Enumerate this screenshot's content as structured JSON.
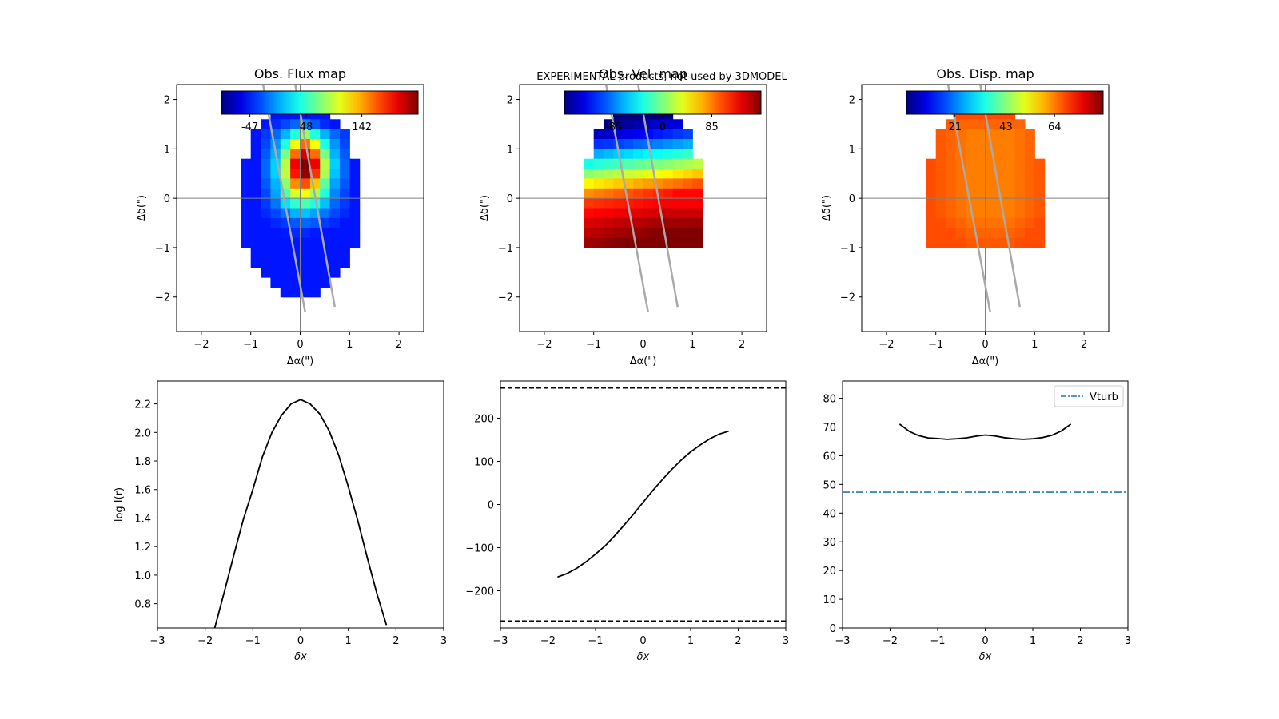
{
  "banner": "EXPERIMENTAL products, not used by 3DMODEL",
  "colors": {
    "banner": "#ff0000",
    "curve": "#000000",
    "vturb": "#1f77b4",
    "slit": "#a9a9a9",
    "axis_line": "#808080"
  },
  "chart_data": [
    {
      "type": "heatmap",
      "title": "Obs. Flux map",
      "xlabel": "Δα(\")",
      "ylabel": "Δδ(\")",
      "xlim": [
        -2.5,
        2.5
      ],
      "ylim": [
        -2.7,
        2.3
      ],
      "xticks": [
        -2,
        -1,
        0,
        1,
        2
      ],
      "yticks": [
        -2,
        -1,
        0,
        1,
        2
      ],
      "colorbar": {
        "colormap": "jet",
        "range": [
          -95,
          237
        ],
        "ticks": [
          -47,
          48,
          142
        ],
        "tick_labels": [
          "-47",
          "48",
          "142"
        ],
        "location": "top-inside"
      },
      "pixel_size": 0.2,
      "x0": -1.2,
      "y0": 1.8,
      "values": [
        [
          -47,
          -47,
          -47,
          -47,
          -47,
          -47,
          -47,
          -47,
          -47,
          -47,
          -47,
          -47,
          -47
        ],
        [
          -47,
          -47,
          -47,
          -40,
          -30,
          -20,
          -10,
          -25,
          -40,
          -47,
          -47,
          -47,
          -47
        ],
        [
          -47,
          -47,
          -35,
          -20,
          5,
          40,
          80,
          40,
          5,
          -20,
          -35,
          -47,
          -47
        ],
        [
          -47,
          -47,
          -30,
          -5,
          40,
          110,
          160,
          110,
          40,
          -5,
          -30,
          -47,
          -47
        ],
        [
          -47,
          -47,
          -25,
          5,
          70,
          160,
          210,
          160,
          70,
          5,
          -25,
          -47,
          -47
        ],
        [
          -47,
          -47,
          -20,
          15,
          90,
          200,
          237,
          200,
          90,
          15,
          -20,
          -47,
          -47
        ],
        [
          -47,
          -47,
          -20,
          15,
          90,
          190,
          230,
          180,
          85,
          10,
          -20,
          -47,
          -47
        ],
        [
          -47,
          -47,
          -25,
          5,
          75,
          150,
          170,
          130,
          60,
          0,
          -25,
          -47,
          -47
        ],
        [
          -47,
          -47,
          -30,
          0,
          55,
          100,
          110,
          85,
          40,
          -10,
          -30,
          -47,
          -47
        ],
        [
          -47,
          -47,
          -35,
          -15,
          20,
          45,
          55,
          40,
          10,
          -20,
          -35,
          -47,
          -47
        ],
        [
          -47,
          -47,
          -40,
          -30,
          -15,
          5,
          10,
          0,
          -15,
          -30,
          -40,
          -47,
          -47
        ],
        [
          -47,
          -47,
          -47,
          -40,
          -35,
          -25,
          -20,
          -25,
          -35,
          -40,
          -47,
          -47,
          -47
        ],
        [
          -47,
          -47,
          -47,
          -47,
          -45,
          -40,
          -40,
          -45,
          -47,
          -47,
          -47,
          -47,
          -47
        ],
        [
          -47,
          -47,
          -47,
          -47,
          -47,
          -47,
          -47,
          -47,
          -47,
          -47,
          -47,
          -47,
          -47
        ],
        [
          -47,
          -47,
          -47,
          -47,
          -47,
          -47,
          -47,
          -47,
          -47,
          -47,
          -47,
          -47,
          -47
        ],
        [
          -47,
          -47,
          -47,
          -47,
          -47,
          -47,
          -47,
          -47,
          -47,
          -47,
          -47,
          -47,
          -47
        ],
        [
          -47,
          -47,
          -47,
          -47,
          -47,
          -47,
          -47,
          -47,
          -47,
          -47,
          -47,
          -47,
          -47
        ],
        [
          -47,
          -47,
          -47,
          -47,
          -47,
          -47,
          -47,
          -47,
          -47,
          -47,
          -47,
          -47,
          -47
        ],
        [
          -47,
          -47,
          -47,
          -47,
          -47,
          -47,
          -47,
          -47,
          -47,
          -47,
          -47,
          -47,
          -47
        ],
        [
          -47,
          -47,
          -47,
          -47,
          -47,
          -47,
          -47,
          -47,
          -47,
          -47,
          -47,
          -47,
          -47
        ]
      ],
      "slit_lines": [
        {
          "x": [
            -0.75,
            0.1
          ],
          "y": [
            2.3,
            -2.3
          ]
        },
        {
          "x": [
            -0.1,
            0.7
          ],
          "y": [
            2.3,
            -2.2
          ]
        }
      ],
      "crosshair": {
        "x": 0,
        "y": 0
      }
    },
    {
      "type": "heatmap",
      "title": "Obs. Vel. map",
      "xlabel": "Δα(\")",
      "ylabel": "Δδ(\")",
      "xlim": [
        -2.5,
        2.5
      ],
      "ylim": [
        -2.7,
        2.3
      ],
      "xticks": [
        -2,
        -1,
        0,
        1,
        2
      ],
      "yticks": [
        -2,
        -1,
        0,
        1,
        2
      ],
      "colorbar": {
        "colormap": "jet",
        "range": [
          -170,
          170
        ],
        "ticks": [
          -85,
          0,
          85
        ],
        "tick_labels": [
          "-85",
          "0",
          "85"
        ],
        "location": "top-inside"
      },
      "pixel_size": 0.2,
      "x0": -1.2,
      "y0": 1.8,
      "values": [
        [
          -170,
          -170,
          -170,
          -170,
          -170,
          -170,
          -170,
          -170,
          -170,
          -170,
          -170,
          -170,
          -170
        ],
        [
          -170,
          -170,
          -170,
          -165,
          -160,
          -155,
          -150,
          -145,
          -140,
          -140,
          -140,
          -140,
          -140
        ],
        [
          -150,
          -148,
          -145,
          -140,
          -135,
          -130,
          -125,
          -120,
          -115,
          -110,
          -105,
          -100,
          -100
        ],
        [
          -115,
          -112,
          -110,
          -105,
          -100,
          -95,
          -90,
          -85,
          -80,
          -75,
          -70,
          -65,
          -60
        ],
        [
          -75,
          -70,
          -65,
          -60,
          -55,
          -50,
          -45,
          -40,
          -35,
          -30,
          -25,
          -20,
          -15
        ],
        [
          -35,
          -30,
          -25,
          -20,
          -15,
          -10,
          -5,
          0,
          5,
          10,
          15,
          20,
          25
        ],
        [
          5,
          10,
          15,
          20,
          25,
          30,
          35,
          40,
          45,
          50,
          55,
          60,
          65
        ],
        [
          45,
          50,
          55,
          60,
          65,
          70,
          75,
          80,
          85,
          90,
          95,
          100,
          105
        ],
        [
          80,
          85,
          90,
          95,
          100,
          105,
          110,
          115,
          120,
          125,
          125,
          125,
          125
        ],
        [
          110,
          112,
          115,
          118,
          120,
          122,
          125,
          128,
          130,
          130,
          130,
          130,
          130
        ],
        [
          125,
          128,
          130,
          133,
          135,
          138,
          140,
          142,
          145,
          145,
          145,
          145,
          145
        ],
        [
          140,
          142,
          145,
          148,
          150,
          152,
          155,
          158,
          160,
          160,
          160,
          160,
          160
        ],
        [
          150,
          152,
          155,
          158,
          160,
          162,
          165,
          168,
          170,
          170,
          170,
          170,
          170
        ],
        [
          160,
          162,
          165,
          168,
          170,
          170,
          170,
          170,
          170,
          170,
          170,
          170,
          170
        ]
      ],
      "slit_lines": [
        {
          "x": [
            -0.75,
            0.1
          ],
          "y": [
            2.3,
            -2.3
          ]
        },
        {
          "x": [
            -0.1,
            0.7
          ],
          "y": [
            2.3,
            -2.2
          ]
        }
      ],
      "crosshair": {
        "x": 0,
        "y": 0
      }
    },
    {
      "type": "heatmap",
      "title": "Obs. Disp. map",
      "xlabel": "Δα(\")",
      "ylabel": "Δδ(\")",
      "xlim": [
        -2.5,
        2.5
      ],
      "ylim": [
        -2.7,
        2.3
      ],
      "xticks": [
        -2,
        -1,
        0,
        1,
        2
      ],
      "yticks": [
        -2,
        -1,
        0,
        1,
        2
      ],
      "colorbar": {
        "colormap": "jet",
        "range": [
          0,
          85
        ],
        "ticks": [
          21,
          43,
          64
        ],
        "tick_labels": [
          "21",
          "43",
          "64"
        ],
        "location": "top-inside"
      },
      "pixel_size": 0.2,
      "x0": -1.2,
      "y0": 1.8,
      "values": [
        [
          68,
          68,
          68,
          68,
          68,
          68,
          68,
          68,
          68,
          68,
          68,
          68,
          68
        ],
        [
          68,
          68,
          67,
          66,
          66,
          66,
          66,
          66,
          66,
          66,
          67,
          68,
          68
        ],
        [
          68,
          67,
          66,
          65,
          64,
          64,
          64,
          64,
          64,
          65,
          66,
          67,
          68
        ],
        [
          68,
          67,
          66,
          65,
          64,
          64,
          64,
          64,
          64,
          65,
          66,
          67,
          68
        ],
        [
          68,
          67,
          66,
          65,
          64,
          64,
          64,
          64,
          64,
          65,
          66,
          67,
          68
        ],
        [
          68,
          67,
          66,
          65,
          64,
          64,
          64,
          64,
          64,
          65,
          66,
          67,
          68
        ],
        [
          68,
          67,
          66,
          65,
          64,
          64,
          64,
          64,
          64,
          65,
          66,
          67,
          68
        ],
        [
          68,
          67,
          66,
          65,
          64,
          64,
          64,
          64,
          64,
          65,
          66,
          67,
          68
        ],
        [
          68,
          67,
          66,
          65,
          64,
          64,
          64,
          64,
          64,
          65,
          66,
          67,
          68
        ],
        [
          68,
          67,
          66,
          65,
          64,
          64,
          64,
          64,
          64,
          65,
          66,
          67,
          68
        ],
        [
          68,
          67,
          66,
          65,
          64,
          64,
          64,
          64,
          64,
          65,
          66,
          67,
          68
        ],
        [
          68,
          68,
          67,
          66,
          65,
          65,
          65,
          65,
          65,
          66,
          67,
          68,
          68
        ],
        [
          68,
          68,
          68,
          67,
          66,
          66,
          66,
          66,
          66,
          67,
          68,
          68,
          68
        ],
        [
          68,
          68,
          68,
          68,
          67,
          67,
          67,
          67,
          67,
          68,
          68,
          68,
          68
        ]
      ],
      "slit_lines": [
        {
          "x": [
            -0.75,
            0.1
          ],
          "y": [
            2.3,
            -2.3
          ]
        },
        {
          "x": [
            -0.1,
            0.7
          ],
          "y": [
            2.3,
            -2.2
          ]
        }
      ],
      "crosshair": {
        "x": 0,
        "y": 0
      }
    },
    {
      "type": "line",
      "title": "",
      "xlabel": "δx",
      "ylabel": "log I(r)",
      "xlim": [
        -3,
        3
      ],
      "ylim": [
        0.63,
        2.36
      ],
      "xticks": [
        -3,
        -2,
        -1,
        0,
        1,
        2,
        3
      ],
      "yticks": [
        0.8,
        1.0,
        1.2,
        1.4,
        1.6,
        1.8,
        2.0,
        2.2
      ],
      "ytick_labels": [
        "0.8",
        "1.0",
        "1.2",
        "1.4",
        "1.6",
        "1.8",
        "2.0",
        "2.2"
      ],
      "series": [
        {
          "x": [
            -1.8,
            -1.6,
            -1.4,
            -1.2,
            -1.0,
            -0.8,
            -0.6,
            -0.4,
            -0.2,
            0.0,
            0.2,
            0.4,
            0.6,
            0.8,
            1.0,
            1.2,
            1.4,
            1.6,
            1.8
          ],
          "y": [
            0.63,
            0.88,
            1.14,
            1.39,
            1.6,
            1.83,
            2.0,
            2.12,
            2.2,
            2.23,
            2.2,
            2.13,
            2.01,
            1.84,
            1.62,
            1.38,
            1.12,
            0.87,
            0.65
          ]
        }
      ]
    },
    {
      "type": "line",
      "title": "",
      "xlabel": "δx",
      "ylabel": "",
      "xlim": [
        -3,
        3
      ],
      "ylim": [
        -286,
        286
      ],
      "xticks": [
        -3,
        -2,
        -1,
        0,
        1,
        2,
        3
      ],
      "yticks": [
        -200,
        -100,
        0,
        100,
        200
      ],
      "ytick_labels": [
        "−200",
        "−100",
        "0",
        "100",
        "200"
      ],
      "series": [
        {
          "x": [
            -1.8,
            -1.6,
            -1.4,
            -1.2,
            -1.0,
            -0.8,
            -0.6,
            -0.4,
            -0.2,
            0.0,
            0.2,
            0.4,
            0.6,
            0.8,
            1.0,
            1.2,
            1.4,
            1.6,
            1.8
          ],
          "y": [
            -168,
            -160,
            -148,
            -133,
            -115,
            -96,
            -73,
            -48,
            -22,
            5,
            32,
            57,
            81,
            103,
            122,
            138,
            152,
            163,
            170
          ]
        }
      ],
      "hlines": [
        270,
        -270
      ]
    },
    {
      "type": "line",
      "title": "",
      "xlabel": "δx",
      "ylabel": "",
      "xlim": [
        -3,
        3
      ],
      "ylim": [
        0,
        86
      ],
      "xticks": [
        -3,
        -2,
        -1,
        0,
        1,
        2,
        3
      ],
      "yticks": [
        0,
        10,
        20,
        30,
        40,
        50,
        60,
        70,
        80
      ],
      "ytick_labels": [
        "0",
        "10",
        "20",
        "30",
        "40",
        "50",
        "60",
        "70",
        "80"
      ],
      "series": [
        {
          "x": [
            -1.8,
            -1.6,
            -1.4,
            -1.2,
            -1.0,
            -0.8,
            -0.6,
            -0.4,
            -0.2,
            0.0,
            0.2,
            0.4,
            0.6,
            0.8,
            1.0,
            1.2,
            1.4,
            1.6,
            1.8
          ],
          "y": [
            71,
            68.5,
            67,
            66.2,
            66,
            65.7,
            65.9,
            66.2,
            66.8,
            67.2,
            66.9,
            66.3,
            65.9,
            65.7,
            65.9,
            66.3,
            67.1,
            68.6,
            71
          ]
        },
        {
          "name": "Vturb",
          "hline": 47.3
        }
      ],
      "legend": {
        "location": "top-right",
        "entries": [
          "Vturb"
        ]
      }
    }
  ]
}
